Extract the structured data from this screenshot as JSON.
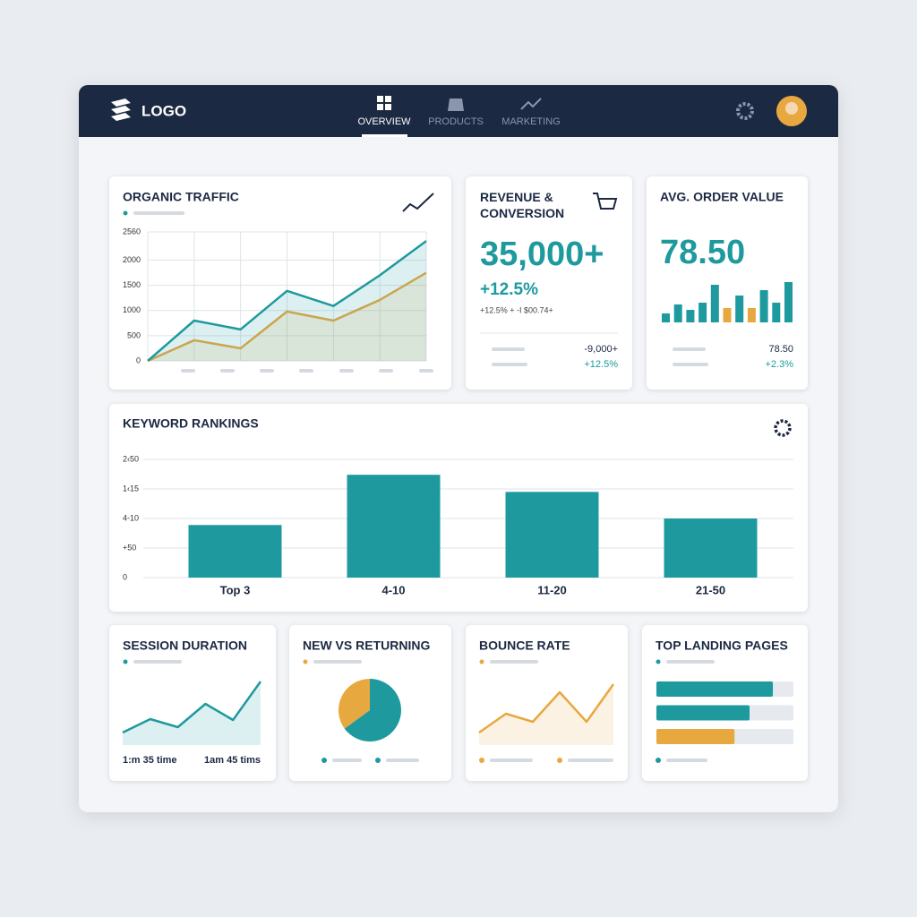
{
  "header": {
    "logo": "LOGO",
    "nav": [
      "OVERVIEW",
      "PRODUCTS",
      "MARKETING"
    ]
  },
  "organic_traffic": {
    "title": "ORGANIC TRAFFIC",
    "chart_data": {
      "type": "line",
      "categories": [
        null,
        null,
        null,
        null,
        null,
        null,
        null
      ],
      "series": [
        {
          "color": "#1e9a9e",
          "values": [
            0,
            800,
            625,
            1390,
            1090,
            1700,
            2380
          ]
        },
        {
          "color": "#e8a840",
          "values": [
            0,
            410,
            250,
            980,
            800,
            1210,
            1750
          ]
        }
      ],
      "ylim": [
        0,
        2560
      ],
      "yticks": [
        0,
        500,
        1000,
        1500,
        2000,
        2560
      ],
      "grid": true,
      "area": true
    }
  },
  "revenue": {
    "title": "REVENUE & CONVERSION",
    "value": "35,000+",
    "change": "+12.5%",
    "detail": "+12.5% + -I $00.74+",
    "rows": [
      "-9,000+",
      "+12.5%"
    ]
  },
  "avg_order_value": {
    "title": "AVG. ORDER VALUE",
    "value": "78.50",
    "chart_data": {
      "type": "bar",
      "values": [
        10,
        20,
        14,
        22,
        42,
        16,
        30,
        16,
        36,
        22,
        45
      ],
      "colors": [
        "#1e9a9e",
        "#1e9a9e",
        "#1e9a9e",
        "#1e9a9e",
        "#1e9a9e",
        "#e8a840",
        "#1e9a9e",
        "#e8a840",
        "#1e9a9e",
        "#1e9a9e",
        "#1e9a9e"
      ]
    },
    "rows": [
      "78.50",
      "+2.3%"
    ]
  },
  "keyword_rankings": {
    "title": "KEYWORD RANKINGS",
    "chart_data": {
      "type": "bar",
      "categories": [
        "Top 3",
        "4-10",
        "11-20",
        "21-50"
      ],
      "values": [
        89,
        174,
        145,
        100
      ],
      "color": "#1e9a9e",
      "ylim": [
        0,
        200
      ],
      "yticks": [
        0,
        {
          "value": 50,
          "label": "+50"
        },
        {
          "value": 100,
          "label": "4-10"
        },
        {
          "value": 150,
          "label": "1‹15"
        },
        {
          "value": 200,
          "label": "2‹50"
        }
      ],
      "grid": true
    }
  },
  "session_duration": {
    "title": "SESSION DURATION",
    "chart_data": {
      "type": "line",
      "categories": [
        null,
        null,
        null,
        null,
        null,
        null
      ],
      "values": [
        14,
        29,
        20,
        46,
        28,
        71
      ],
      "color": "#1e9a9e",
      "area": true
    },
    "labels": [
      "1:m 35 time",
      "1am 45 tims"
    ]
  },
  "new_vs_returning": {
    "title": "NEW VS RETURNING",
    "chart_data": {
      "type": "pie",
      "values": [
        65,
        35
      ],
      "colors": [
        "#1e9a9e",
        "#e8a840"
      ]
    }
  },
  "bounce_rate": {
    "title": "BOUNCE RATE",
    "chart_data": {
      "type": "line",
      "categories": [
        null,
        null,
        null,
        null,
        null,
        null
      ],
      "values": [
        14,
        35,
        26,
        59,
        26,
        68
      ],
      "color": "#e8a840",
      "area": true
    }
  },
  "top_landing_pages": {
    "title": "TOP LANDING PAGES",
    "chart_data": {
      "type": "bar",
      "orientation": "horizontal",
      "values": [
        85,
        68,
        57
      ],
      "colors": [
        "#1e9a9e",
        "#1e9a9e",
        "#e8a840"
      ],
      "xlim": [
        0,
        100
      ]
    }
  }
}
